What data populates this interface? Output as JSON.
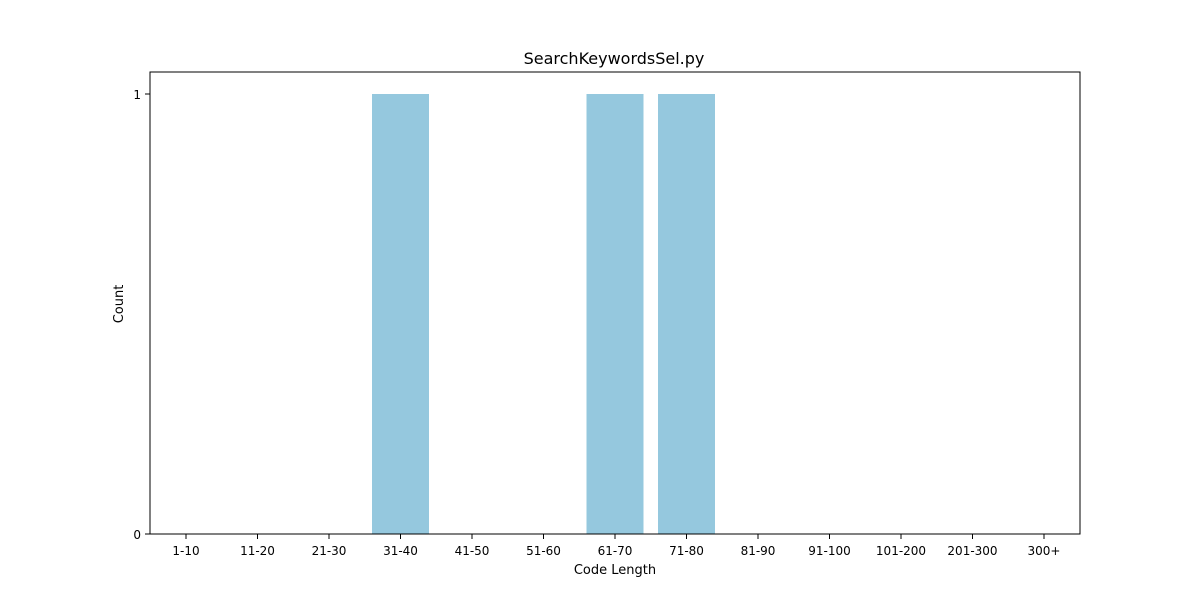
{
  "chart_data": {
    "type": "bar",
    "title": "SearchKeywordsSel.py",
    "xlabel": "Code Length",
    "ylabel": "Count",
    "categories": [
      "1-10",
      "11-20",
      "21-30",
      "31-40",
      "41-50",
      "51-60",
      "61-70",
      "71-80",
      "81-90",
      "91-100",
      "101-200",
      "201-300",
      "300+"
    ],
    "values": [
      0,
      0,
      0,
      1,
      0,
      0,
      1,
      1,
      0,
      0,
      0,
      0,
      0
    ],
    "ylim": [
      0,
      1
    ],
    "yticks": [
      "0",
      "1"
    ],
    "bar_color": "#95c8de",
    "grid": false,
    "legend": "none"
  }
}
